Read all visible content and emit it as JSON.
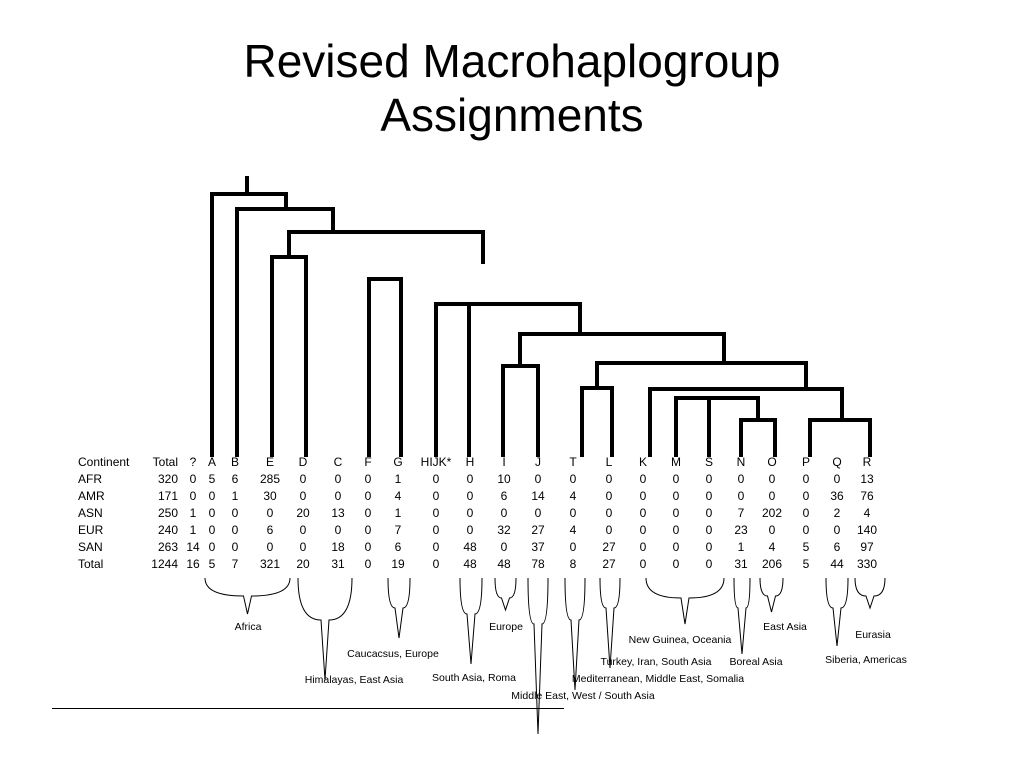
{
  "title": {
    "line1": "Revised Macrohaplogroup",
    "line2": "Assignments"
  },
  "table": {
    "headers": [
      "Continent",
      "Total",
      "?",
      "A",
      "B",
      "E",
      "D",
      "C",
      "F",
      "G",
      "HIJK*",
      "H",
      "I",
      "J",
      "T",
      "L",
      "K",
      "M",
      "S",
      "N",
      "O",
      "P",
      "Q",
      "R"
    ],
    "rows": [
      [
        "AFR",
        "320",
        "0",
        "5",
        "6",
        "285",
        "0",
        "0",
        "0",
        "1",
        "0",
        "0",
        "10",
        "0",
        "0",
        "0",
        "0",
        "0",
        "0",
        "0",
        "0",
        "0",
        "0",
        "13"
      ],
      [
        "AMR",
        "171",
        "0",
        "0",
        "1",
        "30",
        "0",
        "0",
        "0",
        "4",
        "0",
        "0",
        "6",
        "14",
        "4",
        "0",
        "0",
        "0",
        "0",
        "0",
        "0",
        "0",
        "36",
        "76"
      ],
      [
        "ASN",
        "250",
        "1",
        "0",
        "0",
        "0",
        "20",
        "13",
        "0",
        "1",
        "0",
        "0",
        "0",
        "0",
        "0",
        "0",
        "0",
        "0",
        "0",
        "7",
        "202",
        "0",
        "2",
        "4"
      ],
      [
        "EUR",
        "240",
        "1",
        "0",
        "0",
        "6",
        "0",
        "0",
        "0",
        "7",
        "0",
        "0",
        "32",
        "27",
        "4",
        "0",
        "0",
        "0",
        "0",
        "23",
        "0",
        "0",
        "0",
        "140"
      ],
      [
        "SAN",
        "263",
        "14",
        "0",
        "0",
        "0",
        "0",
        "18",
        "0",
        "6",
        "0",
        "48",
        "0",
        "37",
        "0",
        "27",
        "0",
        "0",
        "0",
        "1",
        "4",
        "5",
        "6",
        "97"
      ],
      [
        "Total",
        "1244",
        "16",
        "5",
        "7",
        "321",
        "20",
        "31",
        "0",
        "19",
        "0",
        "48",
        "48",
        "78",
        "8",
        "27",
        "0",
        "0",
        "0",
        "31",
        "206",
        "5",
        "44",
        "330"
      ]
    ]
  },
  "regions": [
    {
      "id": "africa",
      "label": "Africa"
    },
    {
      "id": "caucasus",
      "label": "Caucacsus, Europe"
    },
    {
      "id": "himalayas",
      "label": "Himalayas, East Asia"
    },
    {
      "id": "south-asia",
      "label": "South Asia, Roma"
    },
    {
      "id": "europe",
      "label": "Europe"
    },
    {
      "id": "middle-east",
      "label": "Middle East, West / South Asia"
    },
    {
      "id": "new-guinea",
      "label": "New Guinea, Oceania"
    },
    {
      "id": "turkey",
      "label": "Turkey, Iran, South Asia"
    },
    {
      "id": "mediterranean",
      "label": "Mediterranean, Middle East, Somalia"
    },
    {
      "id": "east-asia",
      "label": "East Asia"
    },
    {
      "id": "boreal",
      "label": "Boreal Asia"
    },
    {
      "id": "eurasia",
      "label": "Eurasia"
    },
    {
      "id": "siberia",
      "label": "Siberia, Americas"
    }
  ]
}
